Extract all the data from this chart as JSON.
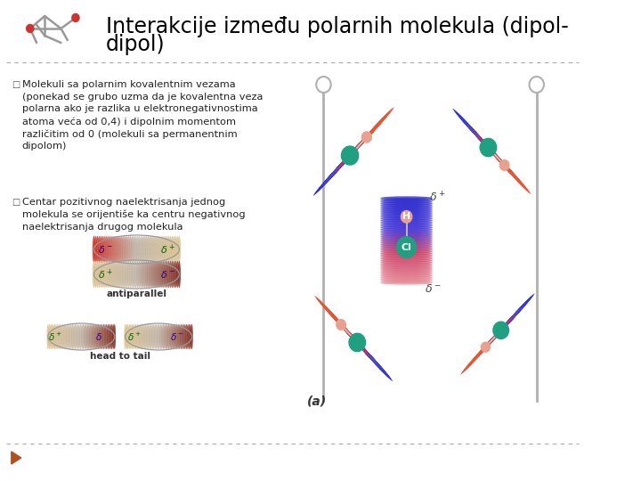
{
  "background_color": "#ffffff",
  "title_line1": "Interakcije između polarnih molekula (dipol-",
  "title_line2": "dipol)",
  "title_fontsize": 17,
  "title_color": "#000000",
  "separator_color": "#aaaaaa",
  "bullet1_text": "Molekuli sa polarnim kovalentnim vezama\n(ponekad se grubo uzma da je kovalentna veza\npolarna ako je razlika u elektronegativnostima\natoma veća od 0,4) i dipolnim momentom\nrazličitim od 0 (molekuli sa permanentnim\ndipolom)",
  "bullet2_text": "Centar pozitivnog naelektrisanja jednog\nmolekula se orijentiše ka centru negativnog\nnaelektrisanja drugog molekula",
  "text_fontsize": 8.2,
  "text_color": "#222222",
  "footer_arrow_color": "#b05020",
  "antiparallel_label": "antiparallel",
  "head_to_tail_label": "head to tail",
  "label_a": "(a)",
  "delta_plus_label": "δ+",
  "delta_minus_label": "δ−",
  "H_label": "H",
  "Cl_label": "Cl"
}
